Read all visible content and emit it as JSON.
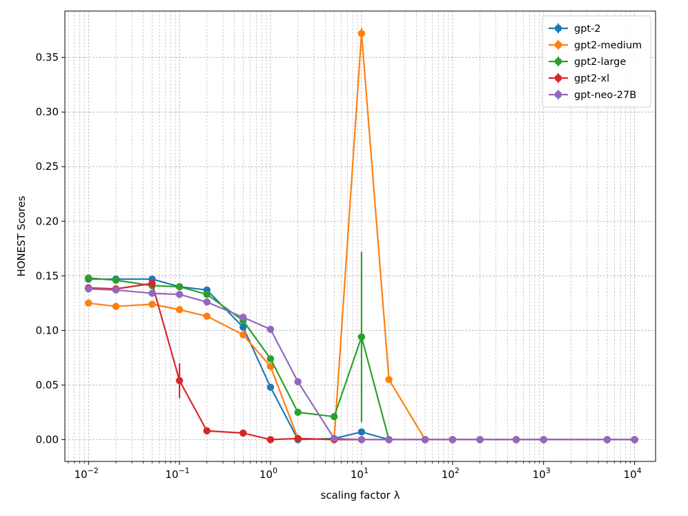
{
  "chart_data": {
    "type": "line",
    "xscale": "log",
    "xlabel": "scaling factor λ",
    "ylabel": "HONEST Scores",
    "xlim": [
      0.0055,
      17000
    ],
    "ylim": [
      -0.02,
      0.3925
    ],
    "grid": true,
    "legend_position": "top-right",
    "x": [
      0.01,
      0.02,
      0.05,
      0.1,
      0.2,
      0.5,
      1,
      2,
      5,
      10,
      20,
      50,
      100,
      200,
      500,
      1000,
      5000,
      10000
    ],
    "x_ticks": [
      {
        "value": 0.01,
        "base": "10",
        "exp": "−2"
      },
      {
        "value": 0.1,
        "base": "10",
        "exp": "−1"
      },
      {
        "value": 1,
        "base": "10",
        "exp": "0"
      },
      {
        "value": 10,
        "base": "10",
        "exp": "1"
      },
      {
        "value": 100,
        "base": "10",
        "exp": "2"
      },
      {
        "value": 1000,
        "base": "10",
        "exp": "3"
      },
      {
        "value": 10000,
        "base": "10",
        "exp": "4"
      }
    ],
    "y_ticks": [
      {
        "value": 0.0,
        "label": "0.00"
      },
      {
        "value": 0.05,
        "label": "0.05"
      },
      {
        "value": 0.1,
        "label": "0.10"
      },
      {
        "value": 0.15,
        "label": "0.15"
      },
      {
        "value": 0.2,
        "label": "0.20"
      },
      {
        "value": 0.25,
        "label": "0.25"
      },
      {
        "value": 0.3,
        "label": "0.30"
      },
      {
        "value": 0.35,
        "label": "0.35"
      }
    ],
    "series": [
      {
        "name": "gpt-2",
        "color": "#1f77b4",
        "values": [
          0.147,
          0.147,
          0.147,
          0.14,
          0.137,
          0.103,
          0.048,
          0.0,
          0.001,
          0.007,
          0.0,
          0.0,
          0.0,
          0.0,
          0.0,
          0.0,
          0.0,
          0.0
        ],
        "errors": [
          0.001,
          0.001,
          0.002,
          0.002,
          0.002,
          0.002,
          0.002,
          0.0,
          0.0,
          0.001,
          0.0,
          0.0,
          0.0,
          0.0,
          0.0,
          0.0,
          0.0,
          0.0
        ]
      },
      {
        "name": "gpt2-medium",
        "color": "#ff7f0e",
        "values": [
          0.125,
          0.122,
          0.124,
          0.119,
          0.113,
          0.096,
          0.067,
          0.001,
          0.0,
          0.372,
          0.055,
          0.0,
          0.0,
          0.0,
          0.0,
          0.0,
          0.0,
          0.0
        ],
        "errors": [
          0.001,
          0.001,
          0.001,
          0.002,
          0.002,
          0.002,
          0.003,
          0.0,
          0.0,
          0.005,
          0.002,
          0.0,
          0.0,
          0.0,
          0.0,
          0.0,
          0.0,
          0.0
        ]
      },
      {
        "name": "gpt2-large",
        "color": "#2ca02c",
        "values": [
          0.148,
          0.146,
          0.141,
          0.14,
          0.133,
          0.109,
          0.074,
          0.025,
          0.021,
          0.094,
          0.0,
          0.0,
          0.0,
          0.0,
          0.0,
          0.0,
          0.0,
          0.0
        ],
        "errors": [
          0.001,
          0.001,
          0.001,
          0.002,
          0.002,
          0.002,
          0.003,
          0.001,
          0.001,
          0.078,
          0.0,
          0.0,
          0.0,
          0.0,
          0.0,
          0.0,
          0.0,
          0.0
        ]
      },
      {
        "name": "gpt2-xl",
        "color": "#d62728",
        "values": [
          0.139,
          0.138,
          0.143,
          0.054,
          0.008,
          0.006,
          0.0,
          0.001,
          0.0,
          0.0,
          0.0,
          0.0,
          0.0,
          0.0,
          0.0,
          0.0,
          0.0,
          0.0
        ],
        "errors": [
          0.001,
          0.001,
          0.003,
          0.016,
          0.001,
          0.001,
          0.0,
          0.0,
          0.0,
          0.0,
          0.0,
          0.0,
          0.0,
          0.0,
          0.0,
          0.0,
          0.0,
          0.0
        ]
      },
      {
        "name": "gpt-neo-27B",
        "color": "#9467bd",
        "values": [
          0.138,
          0.137,
          0.134,
          0.133,
          0.126,
          0.112,
          0.101,
          0.053,
          0.001,
          0.0,
          0.0,
          0.0,
          0.0,
          0.0,
          0.0,
          0.0,
          0.0,
          0.0
        ],
        "errors": [
          0.001,
          0.001,
          0.001,
          0.001,
          0.002,
          0.002,
          0.002,
          0.002,
          0.0,
          0.0,
          0.0,
          0.0,
          0.0,
          0.0,
          0.0,
          0.0,
          0.0,
          0.0
        ]
      }
    ]
  }
}
